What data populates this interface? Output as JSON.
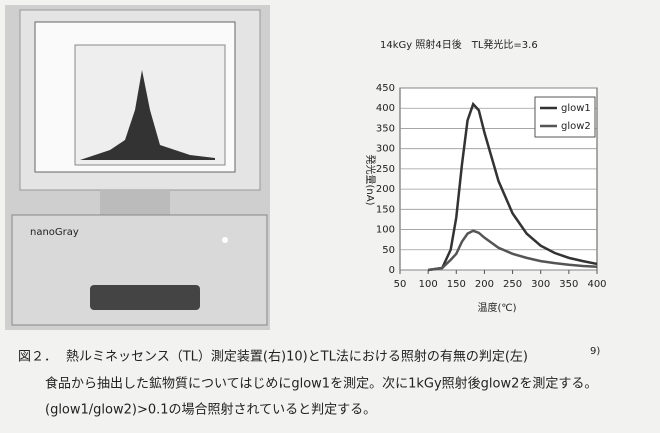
{
  "chart_data": {
    "type": "line",
    "title": "14kGy 照射4日後　TL発光比=3.6",
    "x_label": "温度(℃)",
    "y_label": "発光量(nA)",
    "x": [
      100,
      125,
      140,
      150,
      160,
      170,
      180,
      190,
      200,
      225,
      250,
      275,
      300,
      325,
      350,
      375,
      400
    ],
    "series": [
      {
        "name": "glow1",
        "color": "#333333",
        "values": [
          0,
          5,
          50,
          130,
          260,
          370,
          410,
          395,
          340,
          220,
          140,
          90,
          60,
          42,
          30,
          22,
          15
        ]
      },
      {
        "name": "glow2",
        "color": "#555555",
        "values": [
          0,
          5,
          25,
          40,
          70,
          90,
          97,
          92,
          80,
          55,
          40,
          30,
          22,
          17,
          13,
          10,
          8
        ]
      }
    ],
    "xlim": [
      50,
      400
    ],
    "xticks": [
      50,
      100,
      150,
      200,
      250,
      300,
      350,
      400
    ],
    "ylim": [
      0,
      450
    ],
    "yticks": [
      0,
      50,
      100,
      150,
      200,
      250,
      300,
      350,
      400,
      450
    ],
    "grid": true,
    "legend": "upper right"
  },
  "caption": {
    "label": "図２．",
    "title": "熱ルミネッセンス（TL）測定装置(右)10)とTL法における照射の有無の判定(左)",
    "ref": "9)",
    "line2": "食品から抽出した鉱物質についてはじめにglow1を測定。次に1kGy照射後glow2を測定する。",
    "line3": "(glow1/glow2)>0.1の場合照射されていると判定する。"
  },
  "photo": {
    "brand": "nanoGray"
  }
}
